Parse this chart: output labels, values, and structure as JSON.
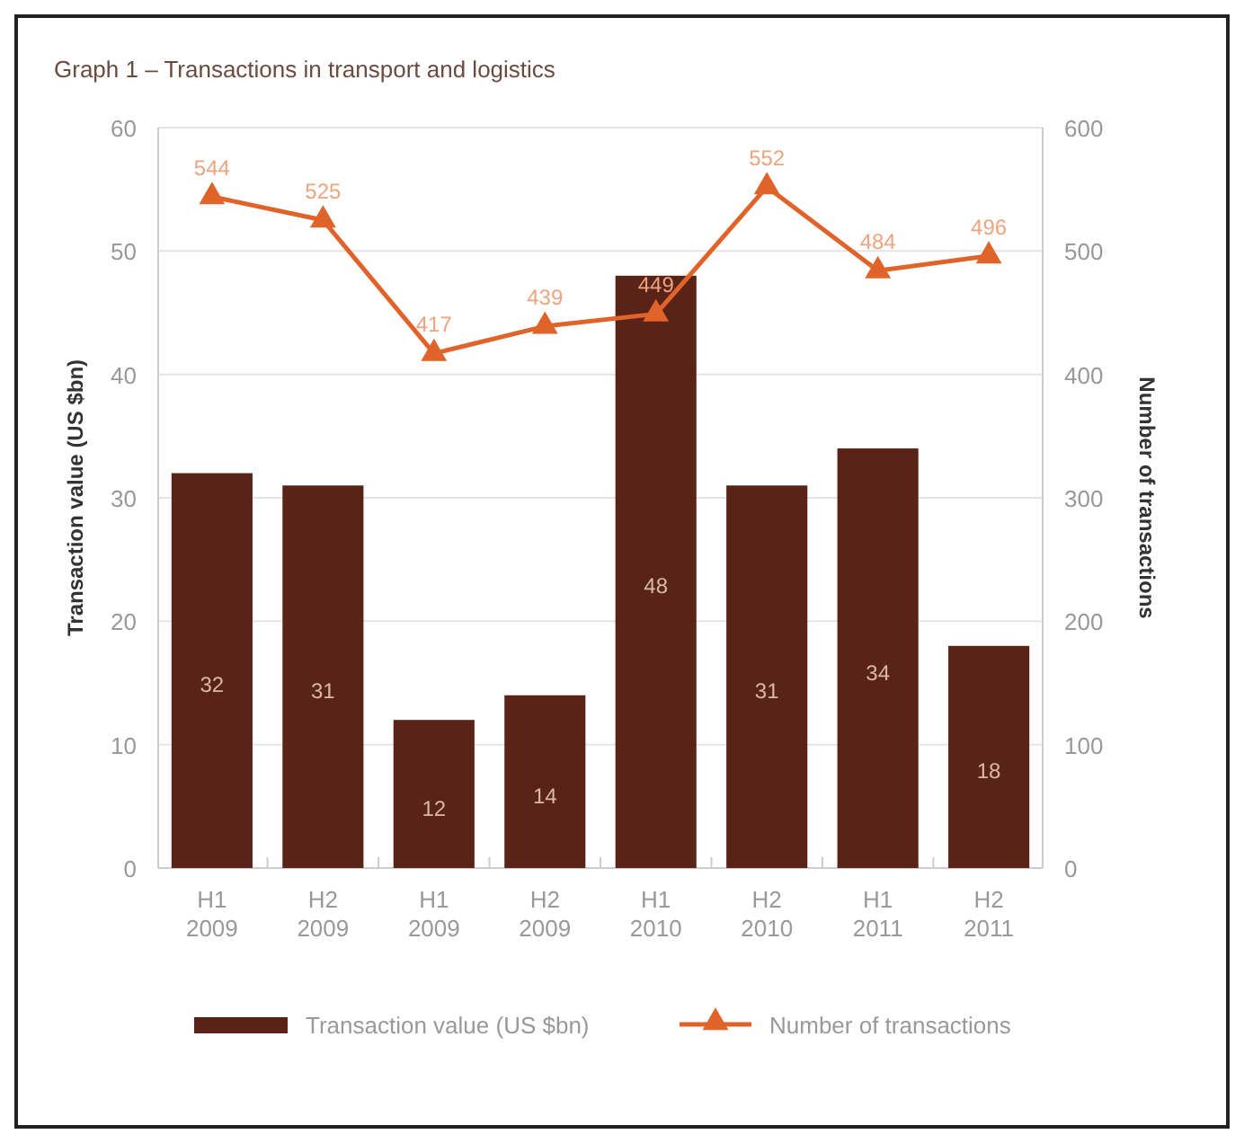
{
  "chart_data": {
    "type": "bar",
    "title": "Graph 1 – Transactions in transport and logistics",
    "ylabel": "Transaction value (US $bn)",
    "y2label": "Number of transactions",
    "categories": [
      "H1 2009",
      "H2 2009",
      "H1 2009",
      "H2 2009",
      "H1 2010",
      "H2 2010",
      "H1 2011",
      "H2 2011"
    ],
    "series": [
      {
        "name": "Transaction value (US $bn)",
        "color": "#5a2317",
        "values": [
          32,
          31,
          12,
          14,
          48,
          31,
          34,
          18
        ]
      },
      {
        "name": "Number of transactions",
        "type": "line",
        "axis": "y2",
        "color": "#e0632a",
        "marker": "triangle",
        "values": [
          544,
          525,
          417,
          439,
          449,
          552,
          484,
          496
        ]
      }
    ],
    "ylim": [
      0,
      60
    ],
    "yticks": [
      0,
      10,
      20,
      30,
      40,
      50,
      60
    ],
    "y2lim": [
      0,
      600
    ],
    "y2ticks": [
      0,
      100,
      200,
      300,
      400,
      500,
      600
    ],
    "grid": "y",
    "legend": "bottom",
    "data_labels": true
  }
}
